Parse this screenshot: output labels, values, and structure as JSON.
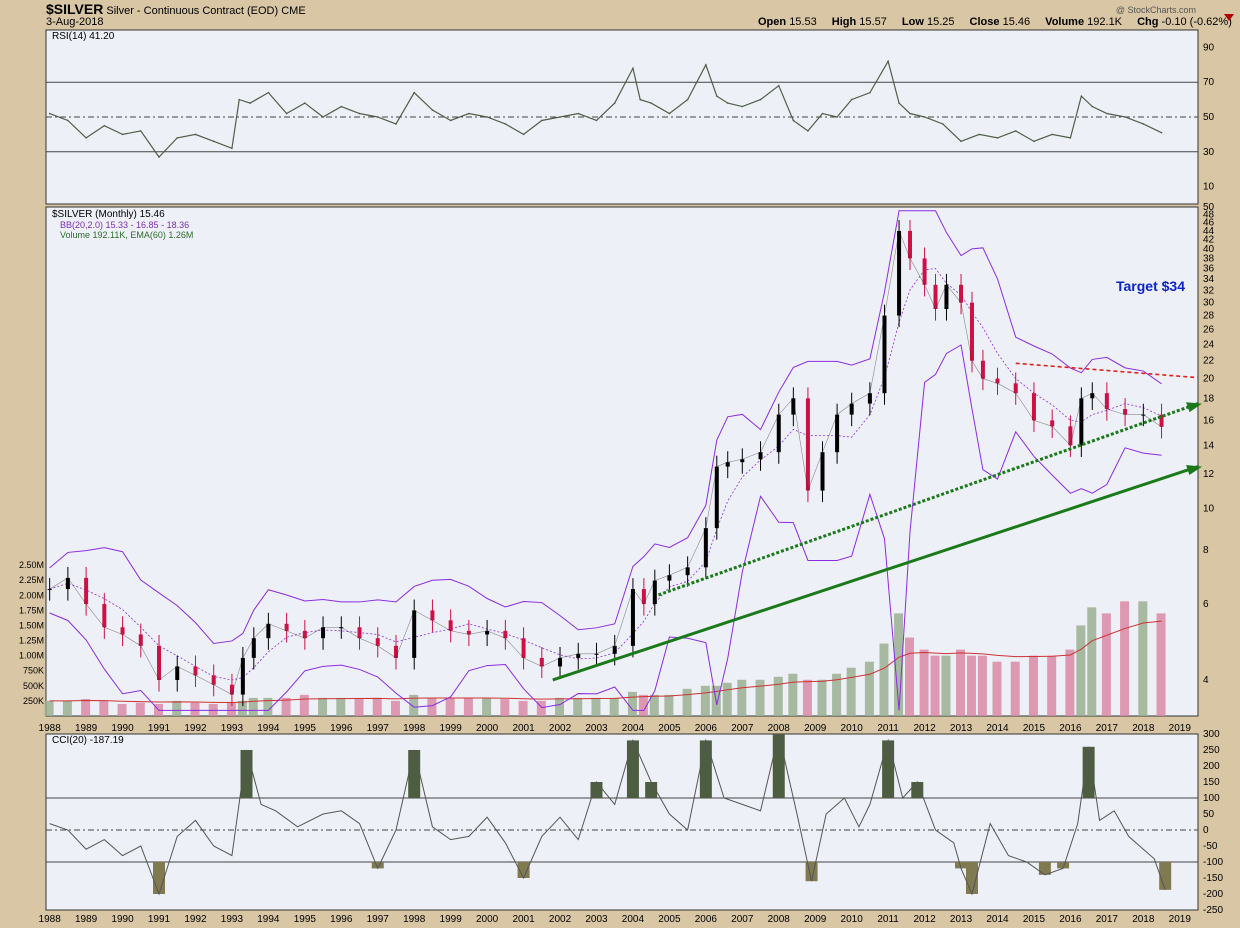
{
  "header": {
    "symbol": "$SILVER",
    "description": "Silver - Continuous Contract (EOD)",
    "exchange": "CME",
    "date": "3-Aug-2018",
    "open_label": "Open",
    "open": "15.53",
    "high_label": "High",
    "high": "15.57",
    "low_label": "Low",
    "low": "15.25",
    "close_label": "Close",
    "close": "15.46",
    "volume_label": "Volume",
    "volume": "192.1K",
    "chg_label": "Chg",
    "chg": "-0.10 (-0.62%)"
  },
  "watermark": "@ StockCharts.com",
  "colors": {
    "panel_bg": "#eef0f7",
    "frame": "#d9c6a5",
    "rsi_line": "#4f5f46",
    "up_candle": "#000000",
    "down_candle": "#cc1144",
    "bollinger": "#8a2be2",
    "volume_up": "#9aaf92",
    "volume_down": "#d98aa4",
    "volume_ema": "#cc3333",
    "trend_green": "#1a7a1a",
    "trend_red": "#e0201a",
    "target_text": "#0a24c8"
  },
  "chart_data": [
    {
      "type": "line",
      "name": "RSI panel",
      "legend": "RSI(14) 41.20",
      "y_ticks": [
        "90",
        "70",
        "50",
        "30",
        "10"
      ],
      "ylim": [
        0,
        100
      ],
      "reference_lines": [
        70,
        50,
        30
      ],
      "x": [
        1988.0,
        1988.5,
        1989.0,
        1989.5,
        1990.0,
        1990.5,
        1991.0,
        1991.5,
        1992.0,
        1992.5,
        1993.0,
        1993.2,
        1993.5,
        1994.0,
        1994.5,
        1995.0,
        1995.5,
        1996.0,
        1996.5,
        1997.0,
        1997.5,
        1998.0,
        1998.5,
        1999.0,
        1999.5,
        2000.0,
        2000.5,
        2001.0,
        2001.5,
        2002.0,
        2002.5,
        2003.0,
        2003.5,
        2004.0,
        2004.2,
        2004.5,
        2005.0,
        2005.5,
        2006.0,
        2006.3,
        2006.6,
        2007.0,
        2007.5,
        2008.0,
        2008.4,
        2008.8,
        2009.2,
        2009.6,
        2010.0,
        2010.5,
        2011.0,
        2011.3,
        2011.6,
        2012.0,
        2012.5,
        2013.0,
        2013.5,
        2014.0,
        2014.5,
        2015.0,
        2015.5,
        2016.0,
        2016.3,
        2016.6,
        2017.0,
        2017.5,
        2018.0,
        2018.5
      ],
      "values": [
        52,
        48,
        38,
        45,
        40,
        42,
        27,
        38,
        40,
        36,
        32,
        60,
        58,
        64,
        52,
        58,
        50,
        56,
        52,
        50,
        46,
        64,
        54,
        48,
        52,
        50,
        46,
        40,
        48,
        50,
        52,
        48,
        58,
        78,
        60,
        58,
        52,
        60,
        80,
        62,
        58,
        56,
        60,
        68,
        48,
        42,
        52,
        50,
        60,
        64,
        82,
        58,
        52,
        50,
        46,
        36,
        40,
        38,
        42,
        36,
        40,
        38,
        62,
        56,
        52,
        50,
        46,
        41
      ]
    },
    {
      "type": "line",
      "name": "Price panel",
      "legend_price": "$SILVER (Monthly) 15.46",
      "legend_bb": "BB(20,2.0) 15.33 - 16.85 - 18.36",
      "legend_volume": "Volume 192.11K, EMA(60) 1.26M",
      "scale": "log",
      "ylim": [
        3.3,
        50
      ],
      "y_ticks": [
        "50",
        "48",
        "46",
        "44",
        "42",
        "40",
        "38",
        "36",
        "34",
        "32",
        "30",
        "28",
        "26",
        "24",
        "22",
        "20",
        "18",
        "16",
        "14",
        "12",
        "10",
        "8",
        "6",
        "4"
      ],
      "volume_ticks": [
        "2.50M",
        "2.25M",
        "2.00M",
        "1.75M",
        "1.50M",
        "1.25M",
        "1.00M",
        "750K",
        "500K",
        "250K"
      ],
      "x_ticks": [
        "1988",
        "1989",
        "1990",
        "1991",
        "1992",
        "1993",
        "1994",
        "1995",
        "1996",
        "1997",
        "1998",
        "1999",
        "2000",
        "2001",
        "2002",
        "2003",
        "2004",
        "2005",
        "2006",
        "2007",
        "2008",
        "2009",
        "2010",
        "2011",
        "2012",
        "2013",
        "2014",
        "2015",
        "2016",
        "2017",
        "2018",
        "2019"
      ],
      "x": [
        1988.0,
        1988.5,
        1989.0,
        1989.5,
        1990.0,
        1990.5,
        1991.0,
        1991.5,
        1992.0,
        1992.5,
        1993.0,
        1993.3,
        1993.6,
        1994.0,
        1994.5,
        1995.0,
        1995.5,
        1996.0,
        1996.5,
        1997.0,
        1997.5,
        1998.0,
        1998.5,
        1999.0,
        1999.5,
        2000.0,
        2000.5,
        2001.0,
        2001.5,
        2002.0,
        2002.5,
        2003.0,
        2003.5,
        2004.0,
        2004.3,
        2004.6,
        2005.0,
        2005.5,
        2006.0,
        2006.3,
        2006.6,
        2007.0,
        2007.5,
        2008.0,
        2008.4,
        2008.8,
        2009.2,
        2009.6,
        2010.0,
        2010.5,
        2010.9,
        2011.3,
        2011.6,
        2012.0,
        2012.3,
        2012.6,
        2013.0,
        2013.3,
        2013.6,
        2014.0,
        2014.5,
        2015.0,
        2015.5,
        2016.0,
        2016.3,
        2016.6,
        2017.0,
        2017.5,
        2018.0,
        2018.5
      ],
      "values": [
        6.5,
        6.9,
        6.0,
        5.3,
        5.1,
        4.8,
        4.0,
        4.3,
        4.1,
        3.9,
        3.7,
        4.5,
        5.0,
        5.4,
        5.2,
        5.0,
        5.3,
        5.3,
        5.0,
        4.8,
        4.5,
        5.8,
        5.5,
        5.2,
        5.1,
        5.2,
        5.0,
        4.5,
        4.3,
        4.5,
        4.6,
        4.6,
        4.8,
        6.5,
        6.0,
        6.8,
        7.0,
        7.3,
        9.0,
        12.5,
        12.8,
        13.0,
        13.5,
        16.5,
        18.0,
        11.0,
        13.5,
        16.5,
        17.5,
        18.5,
        28.0,
        44.0,
        38.0,
        33.0,
        29.0,
        33.0,
        30.0,
        22.0,
        20.0,
        19.5,
        18.5,
        16.0,
        15.5,
        14.0,
        18.0,
        18.5,
        17.0,
        16.5,
        16.5,
        15.46
      ],
      "volume": [
        0.25,
        0.25,
        0.28,
        0.25,
        0.2,
        0.22,
        0.2,
        0.25,
        0.22,
        0.2,
        0.22,
        0.25,
        0.3,
        0.3,
        0.3,
        0.35,
        0.3,
        0.3,
        0.3,
        0.3,
        0.25,
        0.35,
        0.3,
        0.3,
        0.3,
        0.3,
        0.28,
        0.25,
        0.25,
        0.3,
        0.3,
        0.3,
        0.3,
        0.4,
        0.35,
        0.35,
        0.35,
        0.45,
        0.5,
        0.5,
        0.55,
        0.6,
        0.6,
        0.65,
        0.7,
        0.6,
        0.6,
        0.7,
        0.8,
        0.9,
        1.2,
        1.7,
        1.3,
        1.1,
        1.0,
        1.0,
        1.1,
        1.0,
        1.0,
        0.9,
        0.9,
        1.0,
        1.0,
        1.1,
        1.5,
        1.8,
        1.7,
        1.9,
        1.9,
        1.7
      ],
      "annotations": [
        "Target $34"
      ],
      "trend_lines": [
        {
          "name": "solid-support",
          "from": [
            2001.8,
            4.0
          ],
          "to": [
            2019.5,
            12.5
          ],
          "style": "solid",
          "color": "green"
        },
        {
          "name": "dotted-support",
          "from": [
            2004.7,
            6.3
          ],
          "to": [
            2019.5,
            17.5
          ],
          "style": "dotted",
          "color": "green"
        },
        {
          "name": "resistance",
          "from": [
            2014.5,
            21.7
          ],
          "to": [
            2019.5,
            20.1
          ],
          "style": "dotted",
          "color": "red"
        }
      ]
    },
    {
      "type": "line",
      "name": "CCI panel",
      "legend": "CCI(20) -187.19",
      "y_ticks": [
        "300",
        "250",
        "200",
        "150",
        "100",
        "50",
        "0",
        "-50",
        "-100",
        "-150",
        "-200",
        "-250"
      ],
      "ylim": [
        -250,
        300
      ],
      "reference_lines": [
        100,
        0,
        -100
      ],
      "x_ticks": [
        "1988",
        "1989",
        "1990",
        "1991",
        "1992",
        "1993",
        "1994",
        "1995",
        "1996",
        "1997",
        "1998",
        "1999",
        "2000",
        "2001",
        "2002",
        "2003",
        "2004",
        "2005",
        "2006",
        "2007",
        "2008",
        "2009",
        "2010",
        "2011",
        "2012",
        "2013",
        "2014",
        "2015",
        "2016",
        "2017",
        "2018",
        "2019"
      ],
      "x": [
        1988.0,
        1988.5,
        1989.0,
        1989.5,
        1990.0,
        1990.5,
        1991.0,
        1991.5,
        1992.0,
        1992.5,
        1993.0,
        1993.4,
        1993.8,
        1994.2,
        1994.8,
        1995.5,
        1996.0,
        1996.5,
        1997.0,
        1997.5,
        1998.0,
        1998.5,
        1999.0,
        1999.5,
        2000.0,
        2000.5,
        2001.0,
        2001.5,
        2002.0,
        2002.5,
        2003.0,
        2003.5,
        2004.0,
        2004.5,
        2005.0,
        2005.5,
        2006.0,
        2006.5,
        2007.0,
        2007.5,
        2008.0,
        2008.5,
        2008.9,
        2009.3,
        2009.8,
        2010.2,
        2010.5,
        2011.0,
        2011.4,
        2011.8,
        2012.3,
        2012.8,
        2013.0,
        2013.3,
        2013.8,
        2014.3,
        2014.8,
        2015.3,
        2015.8,
        2016.2,
        2016.5,
        2016.8,
        2017.2,
        2017.6,
        2018.0,
        2018.3,
        2018.6
      ],
      "values": [
        20,
        0,
        -60,
        -30,
        -80,
        -50,
        -200,
        -20,
        30,
        -50,
        -80,
        250,
        80,
        60,
        10,
        50,
        60,
        20,
        -120,
        0,
        250,
        10,
        -30,
        -20,
        40,
        -40,
        -150,
        -20,
        40,
        -30,
        150,
        80,
        280,
        150,
        50,
        0,
        280,
        100,
        80,
        60,
        300,
        50,
        -160,
        50,
        100,
        10,
        80,
        280,
        100,
        150,
        0,
        -40,
        -120,
        -200,
        20,
        -80,
        -100,
        -140,
        -120,
        20,
        260,
        30,
        60,
        -20,
        -60,
        -90,
        -187
      ]
    }
  ]
}
